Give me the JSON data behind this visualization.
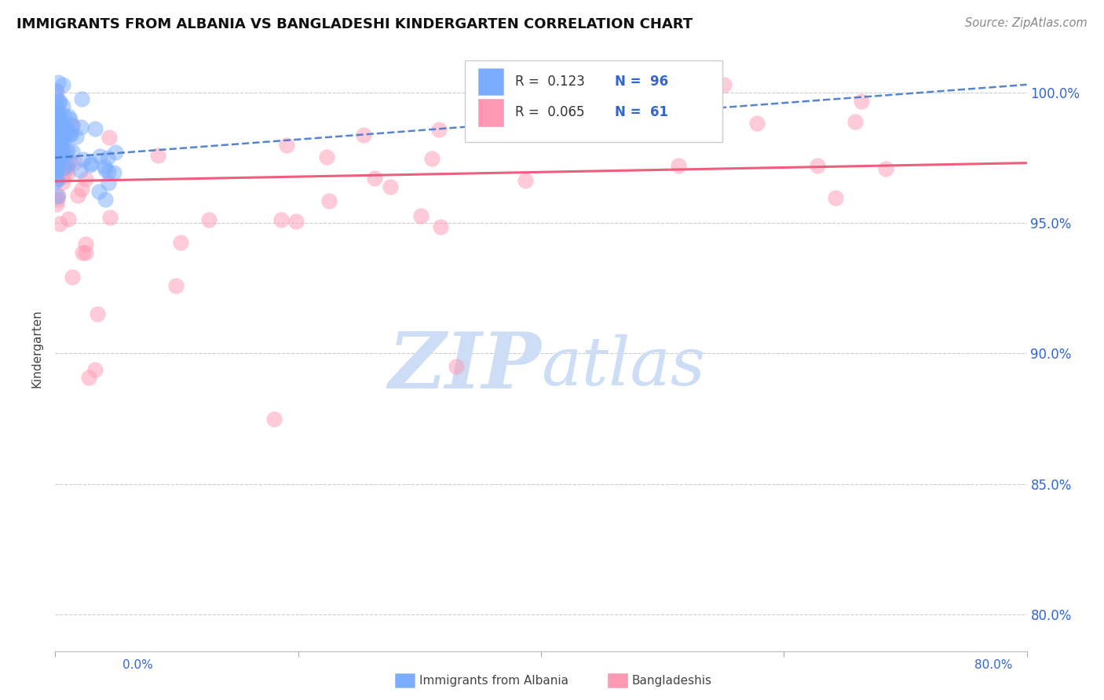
{
  "title": "IMMIGRANTS FROM ALBANIA VS BANGLADESHI KINDERGARTEN CORRELATION CHART",
  "source": "Source: ZipAtlas.com",
  "ylabel": "Kindergarten",
  "ytick_labels": [
    "100.0%",
    "95.0%",
    "90.0%",
    "85.0%",
    "80.0%"
  ],
  "ytick_values": [
    1.0,
    0.95,
    0.9,
    0.85,
    0.8
  ],
  "xlim": [
    0.0,
    0.8
  ],
  "ylim": [
    0.786,
    1.018
  ],
  "albania_color": "#7aadff",
  "bangladesh_color": "#ff99b3",
  "trendline_albania_color": "#4477cc",
  "trendline_bangladesh_color": "#ee5577",
  "background_color": "#ffffff",
  "watermark_color": "#ccddf5",
  "albania_seed": 42,
  "bangladesh_seed": 77,
  "albania_n": 96,
  "bangladesh_n": 61
}
